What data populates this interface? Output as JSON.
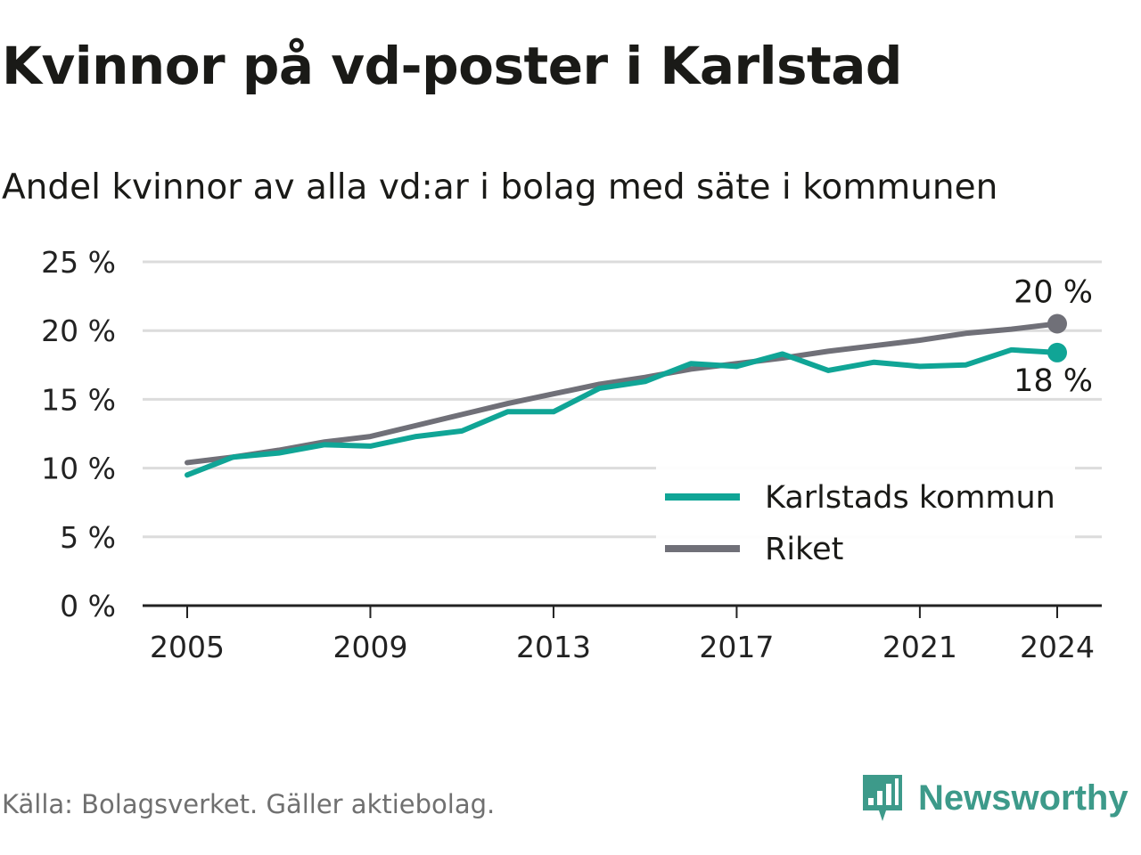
{
  "header": {
    "title": "Kvinnor på vd-poster i Karlstad",
    "subtitle": "Andel kvinnor av alla vd:ar i bolag med säte i kommunen"
  },
  "footer": {
    "source": "Källa: Bolagsverket. Gäller aktiebolag.",
    "brand": "Newsworthy"
  },
  "colors": {
    "karlstad": "#10a596",
    "riket": "#707078",
    "grid": "#dcdcdc",
    "axis": "#222222",
    "brand": "#3d9a8a"
  },
  "chart_data": {
    "type": "line",
    "title": "Kvinnor på vd-poster i Karlstad",
    "subtitle": "Andel kvinnor av alla vd:ar i bolag med säte i kommunen",
    "x": [
      2005,
      2006,
      2007,
      2008,
      2009,
      2010,
      2011,
      2012,
      2013,
      2014,
      2015,
      2016,
      2017,
      2018,
      2019,
      2020,
      2021,
      2022,
      2023,
      2024
    ],
    "series": [
      {
        "name": "Karlstads kommun",
        "color": "#10a596",
        "values": [
          9.5,
          10.8,
          11.1,
          11.7,
          11.6,
          12.3,
          12.7,
          14.1,
          14.1,
          15.8,
          16.3,
          17.6,
          17.4,
          18.3,
          17.1,
          17.7,
          17.4,
          17.5,
          18.6,
          18.4
        ],
        "end_label": "18 %"
      },
      {
        "name": "Riket",
        "color": "#707078",
        "values": [
          10.4,
          10.8,
          11.3,
          11.9,
          12.3,
          13.1,
          13.9,
          14.7,
          15.4,
          16.1,
          16.6,
          17.2,
          17.6,
          18.0,
          18.5,
          18.9,
          19.3,
          19.8,
          20.1,
          20.5
        ],
        "end_label": "20 %"
      }
    ],
    "ylim": [
      0,
      25
    ],
    "yticks": [
      0,
      5,
      10,
      15,
      20,
      25
    ],
    "ytick_labels": [
      "0 %",
      "5 %",
      "10 %",
      "15 %",
      "20 %",
      "25 %"
    ],
    "xticks": [
      2005,
      2009,
      2013,
      2017,
      2021,
      2024
    ],
    "xtick_labels": [
      "2005",
      "2009",
      "2013",
      "2017",
      "2021",
      "2024"
    ],
    "xlabel": "",
    "ylabel": "",
    "grid": true,
    "legend_position": "bottom-right"
  }
}
